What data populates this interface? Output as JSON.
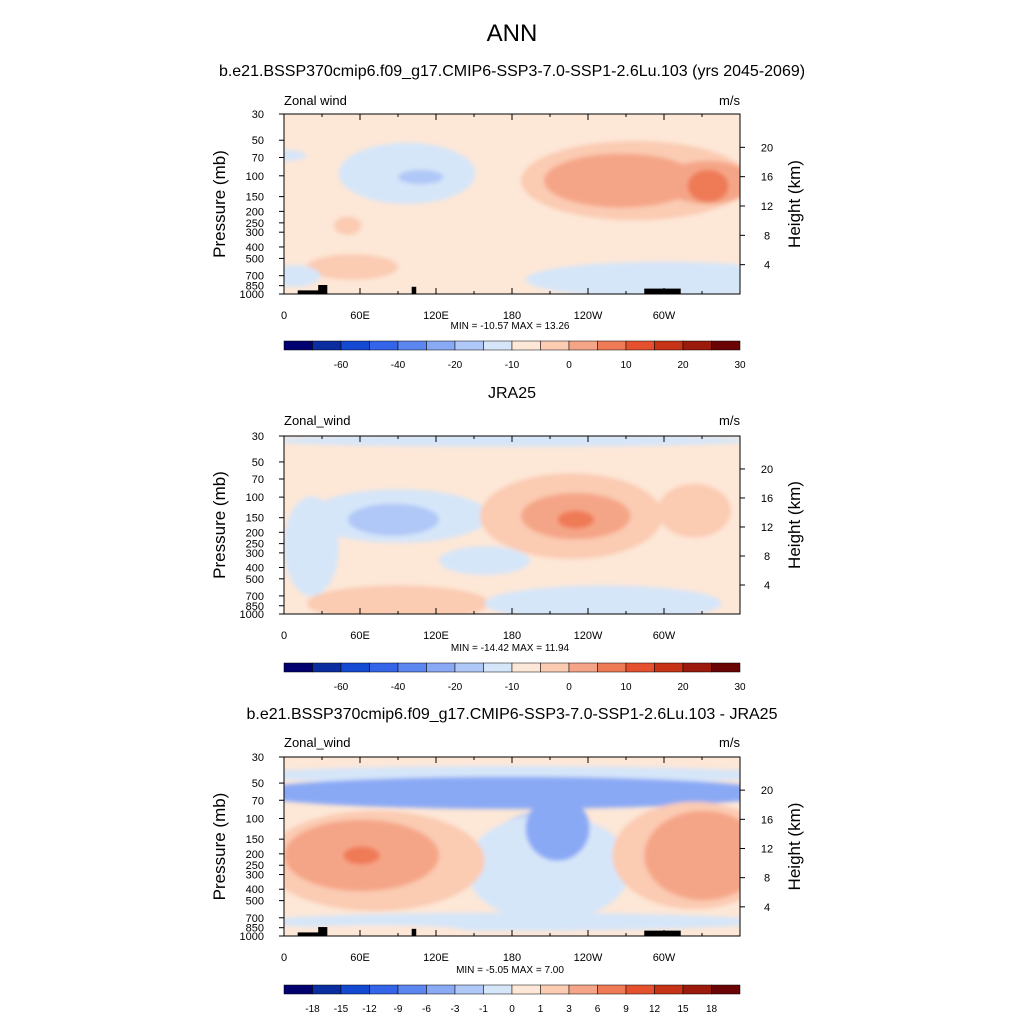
{
  "page": {
    "title": "ANN"
  },
  "chart_data": [
    {
      "type": "heatmap",
      "title": "b.e21.BSSP370cmip6.f09_g17.CMIP6-SSP3-7.0-SSP1-2.6Lu.103 (yrs 2045-2069)",
      "variable": "Zonal wind",
      "units": "m/s",
      "ylabel": "Pressure (mb)",
      "y2label": "Height (km)",
      "xticks": [
        "0",
        "60E",
        "120E",
        "180",
        "120W",
        "60W"
      ],
      "yticks": [
        "30",
        "50",
        "70",
        "100",
        "150",
        "200",
        "250",
        "300",
        "400",
        "500",
        "700",
        "850",
        "1000"
      ],
      "y2ticks": [
        "20",
        "16",
        "12",
        "8",
        "4"
      ],
      "stats": "MIN = -10.57  MAX =  13.26",
      "min": -10.57,
      "max": 13.26,
      "colorbar_labels": [
        "-60",
        "-40",
        "-20",
        "-10",
        "0",
        "10",
        "20",
        "30"
      ],
      "colorbar_colors": [
        "#02006e",
        "#0a2ea0",
        "#1449d2",
        "#3464e8",
        "#5c86f0",
        "#8aa9f5",
        "#b0c8f7",
        "#d6e6f9",
        "#fde7d7",
        "#fbcbb2",
        "#f5a587",
        "#ef7a56",
        "#e5502f",
        "#c73316",
        "#9b1a0b",
        "#6a0404"
      ]
    },
    {
      "type": "heatmap",
      "title": "JRA25",
      "variable": "Zonal_wind",
      "units": "m/s",
      "ylabel": "Pressure (mb)",
      "y2label": "Height (km)",
      "xticks": [
        "0",
        "60E",
        "120E",
        "180",
        "120W",
        "60W"
      ],
      "yticks": [
        "30",
        "50",
        "70",
        "100",
        "150",
        "200",
        "250",
        "300",
        "400",
        "500",
        "700",
        "850",
        "1000"
      ],
      "y2ticks": [
        "20",
        "16",
        "12",
        "8",
        "4"
      ],
      "stats": "MIN = -14.42  MAX =  11.94",
      "min": -14.42,
      "max": 11.94,
      "colorbar_labels": [
        "-60",
        "-40",
        "-20",
        "-10",
        "0",
        "10",
        "20",
        "30"
      ],
      "colorbar_colors": [
        "#02006e",
        "#0a2ea0",
        "#1449d2",
        "#3464e8",
        "#5c86f0",
        "#8aa9f5",
        "#b0c8f7",
        "#d6e6f9",
        "#fde7d7",
        "#fbcbb2",
        "#f5a587",
        "#ef7a56",
        "#e5502f",
        "#c73316",
        "#9b1a0b",
        "#6a0404"
      ]
    },
    {
      "type": "heatmap",
      "title": "b.e21.BSSP370cmip6.f09_g17.CMIP6-SSP3-7.0-SSP1-2.6Lu.103 - JRA25",
      "variable": "Zonal_wind",
      "units": "m/s",
      "ylabel": "Pressure (mb)",
      "y2label": "Height (km)",
      "xticks": [
        "0",
        "60E",
        "120E",
        "180",
        "120W",
        "60W"
      ],
      "yticks": [
        "30",
        "50",
        "70",
        "100",
        "150",
        "200",
        "250",
        "300",
        "400",
        "500",
        "700",
        "850",
        "1000"
      ],
      "y2ticks": [
        "20",
        "16",
        "12",
        "8",
        "4"
      ],
      "stats": "MIN =  -5.05  MAX =   7.00",
      "min": -5.05,
      "max": 7.0,
      "colorbar_labels": [
        "-18",
        "-15",
        "-12",
        "-9",
        "-6",
        "-3",
        "-1",
        "0",
        "1",
        "3",
        "6",
        "9",
        "12",
        "15",
        "18"
      ],
      "colorbar_colors": [
        "#02006e",
        "#0a2ea0",
        "#1449d2",
        "#3464e8",
        "#5c86f0",
        "#8aa9f5",
        "#b0c8f7",
        "#d6e6f9",
        "#fde7d7",
        "#fbcbb2",
        "#f5a587",
        "#ef7a56",
        "#e5502f",
        "#c73316",
        "#9b1a0b",
        "#6a0404"
      ]
    }
  ]
}
